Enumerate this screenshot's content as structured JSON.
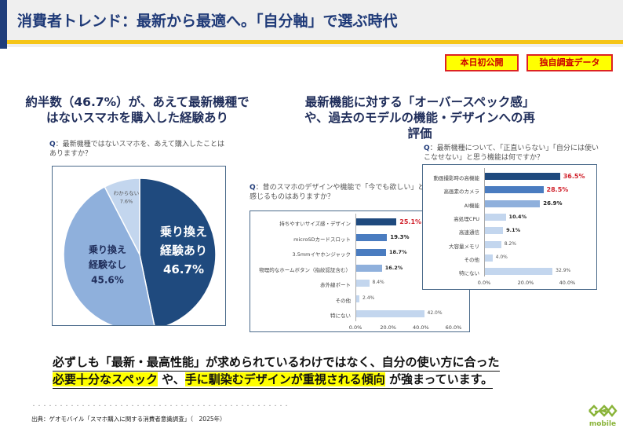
{
  "header": {
    "title": "消費者トレンド：最新から最適へ。「自分軸」で選ぶ時代"
  },
  "badges": [
    "本日初公開",
    "独自調査データ"
  ],
  "headline_left": [
    "約半数（46.7%）が、あえて最新機種で",
    "はないスマホを購入した経験あり"
  ],
  "headline_right": [
    "最新機能に対する「オーバースペック感」",
    "や、過去のモデルの機能・デザインへの再",
    "評価"
  ],
  "conclusion": {
    "line1": "必ずしも「最新・最高性能」が求められているわけではなく、自分の使い方に合った",
    "hl1": "必要十分なスペック",
    "mid": " や、",
    "hl2": "手に馴染むデザインが重視される傾向",
    "end": " が強まっています。"
  },
  "footer": {
    "dots": "・・・・・・・・・・・・・・・・・・・・・・・・・・・・・・・・・・・・・・・・・・・・・・・",
    "source": "出典：ゲオモバイル「スマホ購入に関する消費者意識調査」（　2025年）",
    "logo": "GEO mobile"
  },
  "colors": {
    "navy": "#1f4a7e",
    "mid": "#4a7cc0",
    "light": "#8fb0dc",
    "pale": "#c3d6ee"
  },
  "chart_data": [
    {
      "type": "pie",
      "question_prefix": "Q",
      "question": "：最新機種ではないスマホを、あえて購入したことはありますか？",
      "slices": [
        {
          "label": "乗り換え経験あり",
          "label_lines": [
            "乗り換え",
            "経験あり"
          ],
          "value": 46.7,
          "display": "46.7%"
        },
        {
          "label": "乗り換え経験なし",
          "label_lines": [
            "乗り換え",
            "経験なし"
          ],
          "value": 45.6,
          "display": "45.6%"
        },
        {
          "label": "わからない",
          "label_lines": [
            "わからない"
          ],
          "value": 7.6,
          "display": "7.6%"
        }
      ]
    },
    {
      "type": "bar",
      "orientation": "horizontal",
      "question_prefix": "Q",
      "question": "：昔のスマホのデザインや機能で「今でも欲しい」と感じるものはありますか？",
      "categories": [
        "持ちやすいサイズ感・デザイン",
        "microSDカードスロット",
        "3.5mmイヤホンジャック",
        "物理的なホームボタン（指紋認証含む）",
        "赤外線ポート",
        "その他",
        "特にない"
      ],
      "values": [
        25.1,
        19.3,
        18.7,
        16.2,
        8.4,
        2.4,
        42.0
      ],
      "labels": [
        "25.1%",
        "19.3%",
        "18.7%",
        "16.2%",
        "8.4%",
        "2.4%",
        "42.0%"
      ],
      "xlim": [
        0,
        60
      ],
      "ticks": [
        "0.0%",
        "20.0%",
        "40.0%",
        "60.0%"
      ]
    },
    {
      "type": "bar",
      "orientation": "horizontal",
      "question_prefix": "Q",
      "question": "：最新機種について、「正直いらない」「自分には使いこなせない」と思う機能は何ですか？",
      "categories": [
        "動画撮影時の高機能",
        "高画素のカメラ",
        "AI機能",
        "高処理CPU",
        "高速通信",
        "大容量メモリ",
        "その他",
        "特にない"
      ],
      "values": [
        36.5,
        28.5,
        26.9,
        10.4,
        9.1,
        8.2,
        4.0,
        32.9
      ],
      "labels": [
        "36.5%",
        "28.5%",
        "26.9%",
        "10.4%",
        "9.1%",
        "8.2%",
        "4.0%",
        "32.9%"
      ],
      "xlim": [
        0,
        40
      ],
      "ticks": [
        "0.0%",
        "20.0%",
        "40.0%"
      ]
    }
  ]
}
